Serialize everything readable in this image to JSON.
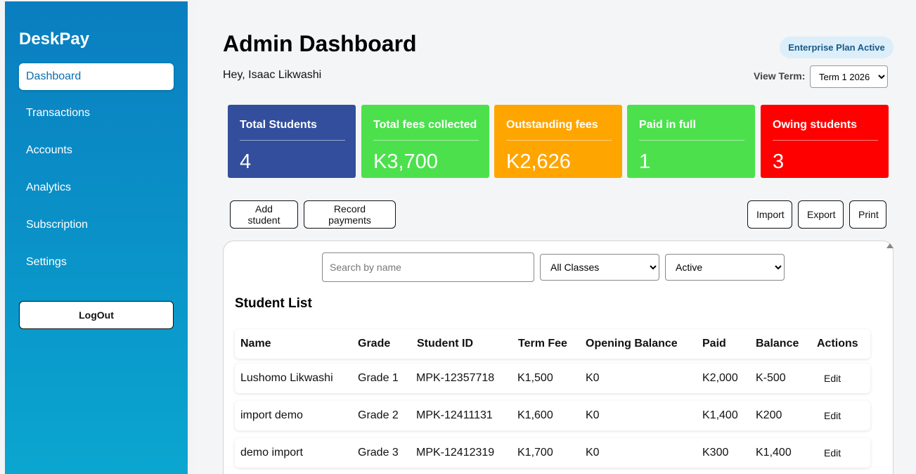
{
  "sidebar": {
    "brand": "DeskPay",
    "items": [
      {
        "label": "Dashboard",
        "active": true
      },
      {
        "label": "Transactions",
        "active": false
      },
      {
        "label": "Accounts",
        "active": false
      },
      {
        "label": "Analytics",
        "active": false
      },
      {
        "label": "Subscription",
        "active": false
      },
      {
        "label": "Settings",
        "active": false
      }
    ],
    "logout_label": "LogOut"
  },
  "header": {
    "title": "Admin Dashboard",
    "greeting": "Hey, Isaac Likwashi",
    "plan_badge": "Enterprise Plan Active",
    "term_label": "View Term:",
    "term_selected": "Term 1 2026"
  },
  "stats": [
    {
      "label": "Total Students",
      "value": "4",
      "color": "#324e9c"
    },
    {
      "label": "Total fees collected",
      "value": "K3,700",
      "color": "#4ce14c"
    },
    {
      "label": "Outstanding fees",
      "value": "K2,626",
      "color": "#ffa500"
    },
    {
      "label": "Paid in full",
      "value": "1",
      "color": "#4ce14c"
    },
    {
      "label": "Owing students",
      "value": "3",
      "color": "#ff0000"
    }
  ],
  "actions": {
    "add_student": "Add student",
    "record_payments": "Record payments",
    "import": "Import",
    "export": "Export",
    "print": "Print"
  },
  "filters": {
    "search_placeholder": "Search by name",
    "class_selected": "All Classes",
    "status_selected": "Active"
  },
  "student_list": {
    "title": "Student List",
    "columns": [
      "Name",
      "Grade",
      "Student ID",
      "Term Fee",
      "Opening Balance",
      "Paid",
      "Balance",
      "Actions"
    ],
    "rows": [
      {
        "name": "Lushomo Likwashi",
        "grade": "Grade 1",
        "id": "MPK-12357718",
        "term_fee": "K1,500",
        "opening": "K0",
        "paid": "K2,000",
        "balance": "K-500",
        "action": "Edit"
      },
      {
        "name": "import demo",
        "grade": "Grade 2",
        "id": "MPK-12411131",
        "term_fee": "K1,600",
        "opening": "K0",
        "paid": "K1,400",
        "balance": "K200",
        "action": "Edit"
      },
      {
        "name": "demo import",
        "grade": "Grade 3",
        "id": "MPK-12412319",
        "term_fee": "K1,700",
        "opening": "K0",
        "paid": "K300",
        "balance": "K1,400",
        "action": "Edit"
      }
    ]
  }
}
